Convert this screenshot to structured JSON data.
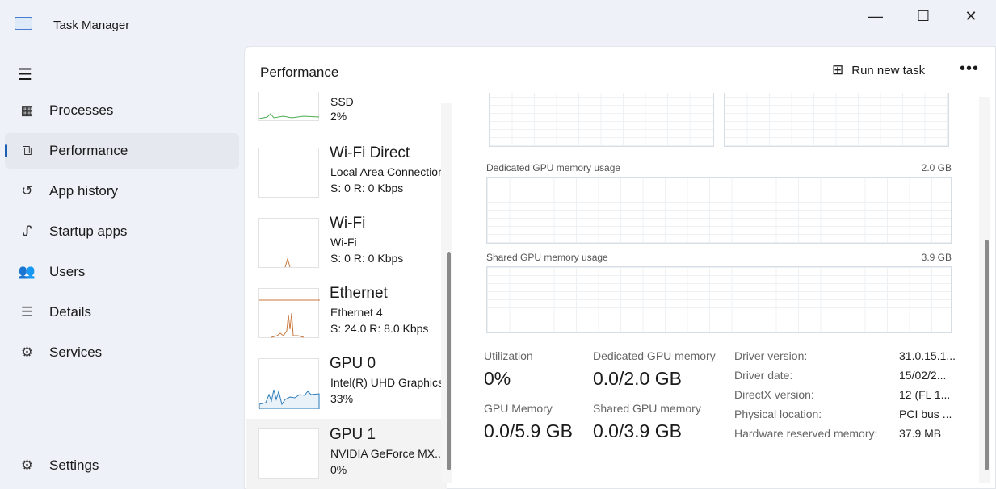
{
  "window": {
    "title": "Task Manager"
  },
  "sidebar": {
    "items": [
      {
        "label": "Processes",
        "icon": "processes-icon"
      },
      {
        "label": "Performance",
        "icon": "performance-icon",
        "active": true
      },
      {
        "label": "App history",
        "icon": "history-icon"
      },
      {
        "label": "Startup apps",
        "icon": "startup-icon"
      },
      {
        "label": "Users",
        "icon": "users-icon"
      },
      {
        "label": "Details",
        "icon": "details-icon"
      },
      {
        "label": "Services",
        "icon": "services-icon"
      }
    ],
    "settings": "Settings"
  },
  "header": {
    "title": "Performance",
    "run_new_task": "Run new task"
  },
  "devices": [
    {
      "name": "",
      "sub": "SSD",
      "value": "2%",
      "color": "#4caf50"
    },
    {
      "name": "Wi-Fi Direct",
      "sub": "Local Area Connection",
      "value": "S: 0 R: 0 Kbps"
    },
    {
      "name": "Wi-Fi",
      "sub": "Wi-Fi",
      "value": "S: 0 R: 0 Kbps",
      "color": "#c8763a"
    },
    {
      "name": "Ethernet",
      "sub": "Ethernet 4",
      "value": "S: 24.0 R: 8.0 Kbps",
      "color": "#c8763a"
    },
    {
      "name": "GPU 0",
      "sub": "Intel(R) UHD Graphics",
      "value": "33%",
      "color": "#2a7ab8"
    },
    {
      "name": "GPU 1",
      "sub": "NVIDIA GeForce MX...",
      "value": "0%",
      "selected": true
    }
  ],
  "detail": {
    "dedicated_label": "Dedicated GPU memory usage",
    "dedicated_max": "2.0 GB",
    "shared_label": "Shared GPU memory usage",
    "shared_max": "3.9 GB",
    "stats": [
      {
        "label": "Utilization",
        "value": "0%"
      },
      {
        "label": "Dedicated GPU memory",
        "value": "0.0/2.0 GB"
      },
      {
        "label": "GPU Memory",
        "value": "0.0/5.9 GB"
      },
      {
        "label": "Shared GPU memory",
        "value": "0.0/3.9 GB"
      }
    ],
    "props": [
      {
        "k": "Driver version:",
        "v": "31.0.15.1..."
      },
      {
        "k": "Driver date:",
        "v": "15/02/2..."
      },
      {
        "k": "DirectX version:",
        "v": "12 (FL 1..."
      },
      {
        "k": "Physical location:",
        "v": "PCI bus ..."
      },
      {
        "k": "Hardware reserved memory:",
        "v": "37.9 MB"
      }
    ]
  }
}
